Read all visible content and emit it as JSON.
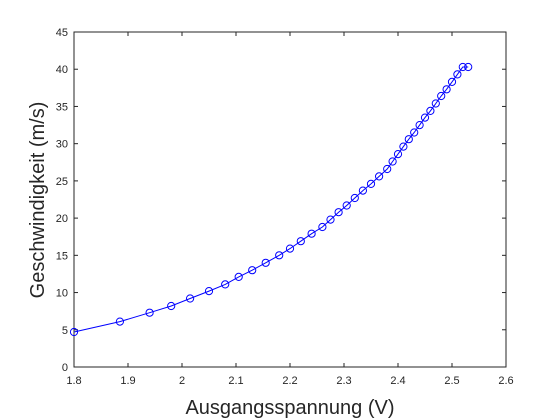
{
  "chart_data": {
    "type": "line",
    "title": "",
    "xlabel": "Ausgangsspannung (V)",
    "ylabel": "Geschwindigkeit (m/s)",
    "xlim": [
      1.8,
      2.6
    ],
    "ylim": [
      0,
      45
    ],
    "xticks": [
      "1.8",
      "1.9",
      "2",
      "2.1",
      "2.2",
      "2.3",
      "2.4",
      "2.5",
      "2.6"
    ],
    "yticks": [
      "0",
      "5",
      "10",
      "15",
      "20",
      "25",
      "30",
      "35",
      "40",
      "45"
    ],
    "grid": false,
    "line_color": "#0000ff",
    "marker": "circle-open",
    "series": [
      {
        "x": [
          1.8,
          1.885,
          1.94,
          1.98,
          2.015,
          2.05,
          2.08,
          2.105,
          2.13,
          2.155,
          2.18,
          2.2,
          2.22,
          2.24,
          2.26,
          2.275,
          2.29,
          2.305,
          2.32,
          2.335,
          2.35,
          2.365,
          2.38,
          2.39,
          2.4,
          2.41,
          2.42,
          2.43,
          2.44,
          2.45,
          2.46,
          2.47,
          2.48,
          2.49,
          2.5,
          2.51,
          2.52,
          2.53
        ],
        "y": [
          4.7,
          6.1,
          7.3,
          8.2,
          9.2,
          10.2,
          11.1,
          12.1,
          13.0,
          14.0,
          15.0,
          15.9,
          16.9,
          17.9,
          18.8,
          19.8,
          20.8,
          21.7,
          22.7,
          23.7,
          24.6,
          25.6,
          26.6,
          27.6,
          28.6,
          29.6,
          30.6,
          31.5,
          32.5,
          33.5,
          34.4,
          35.4,
          36.4,
          37.3,
          38.3,
          39.3,
          40.3,
          40.3
        ]
      }
    ]
  }
}
